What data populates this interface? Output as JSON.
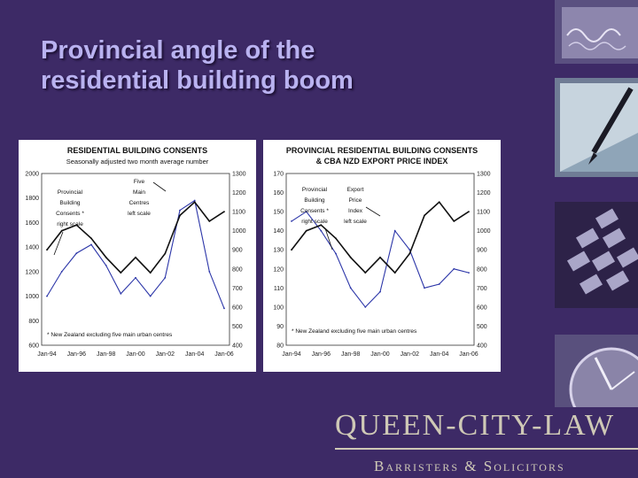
{
  "slide": {
    "title_line1": "Provincial angle of the",
    "title_line2": "residential building boom"
  },
  "brand": {
    "name": "QUEEN-CITY-LAW",
    "tagline": "Barristers & Solicitors"
  },
  "charts": [
    {
      "title": "RESIDENTIAL BUILDING CONSENTS",
      "subtitle": "Seasonally adjusted two month average number",
      "left_ticks": [
        "2000",
        "1800",
        "1600",
        "1400",
        "1200",
        "1000",
        "800",
        "600"
      ],
      "right_ticks": [
        "1300",
        "1200",
        "1100",
        "1000",
        "900",
        "800",
        "700",
        "600",
        "500",
        "400"
      ],
      "x_ticks": [
        "Jan-94",
        "Jan-96",
        "Jan-98",
        "Jan-00",
        "Jan-02",
        "Jan-04",
        "Jan-06"
      ],
      "annot_a": [
        "Provincial",
        "Building",
        "Consents *",
        "right scale"
      ],
      "annot_b": [
        "Five",
        "Main",
        "Centres",
        "left scale"
      ],
      "footnote": "* New Zealand excluding five main urban centres"
    },
    {
      "title": "PROVINCIAL RESIDENTIAL BUILDING CONSENTS",
      "subtitle": "& CBA NZD EXPORT PRICE INDEX",
      "left_ticks": [
        "170",
        "160",
        "150",
        "140",
        "130",
        "120",
        "110",
        "100",
        "90",
        "80"
      ],
      "right_ticks": [
        "1300",
        "1200",
        "1100",
        "1000",
        "900",
        "800",
        "700",
        "600",
        "500",
        "400"
      ],
      "x_ticks": [
        "Jan-94",
        "Jan-96",
        "Jan-98",
        "Jan-00",
        "Jan-02",
        "Jan-04",
        "Jan-06"
      ],
      "annot_a": [
        "Provincial",
        "Building",
        "Consents *",
        "right scale"
      ],
      "annot_b": [
        "Export",
        "Price",
        "Index",
        "left scale"
      ],
      "footnote": "* New Zealand excluding five main urban centres"
    }
  ],
  "chart_data": [
    {
      "type": "line",
      "title": "RESIDENTIAL BUILDING CONSENTS",
      "subtitle": "Seasonally adjusted two month average number",
      "x": [
        "Jan-94",
        "Jan-95",
        "Jan-96",
        "Jan-97",
        "Jan-98",
        "Jan-99",
        "Jan-00",
        "Jan-01",
        "Jan-02",
        "Jan-03",
        "Jan-04",
        "Jan-05",
        "Jan-06"
      ],
      "series": [
        {
          "name": "Five Main Centres",
          "axis": "left",
          "color": "#2b35a8",
          "values": [
            1000,
            1200,
            1350,
            1420,
            1250,
            1020,
            1150,
            1000,
            1150,
            1700,
            1780,
            1200,
            900
          ]
        },
        {
          "name": "Provincial Building Consents",
          "axis": "right",
          "color": "#111111",
          "values": [
            900,
            1000,
            1030,
            960,
            860,
            780,
            860,
            780,
            880,
            1080,
            1150,
            1050,
            1100
          ]
        }
      ],
      "ylim_left": [
        600,
        2000
      ],
      "ylim_right": [
        400,
        1300
      ],
      "grid": false
    },
    {
      "type": "line",
      "title": "PROVINCIAL RESIDENTIAL BUILDING CONSENTS",
      "subtitle": "& CBA NZD EXPORT PRICE INDEX",
      "x": [
        "Jan-94",
        "Jan-95",
        "Jan-96",
        "Jan-97",
        "Jan-98",
        "Jan-99",
        "Jan-00",
        "Jan-01",
        "Jan-02",
        "Jan-03",
        "Jan-04",
        "Jan-05",
        "Jan-06"
      ],
      "series": [
        {
          "name": "Export Price Index",
          "axis": "left",
          "color": "#2b35a8",
          "values": [
            145,
            150,
            140,
            128,
            110,
            100,
            108,
            140,
            130,
            110,
            112,
            120,
            118
          ]
        },
        {
          "name": "Provincial Building Consents",
          "axis": "right",
          "color": "#111111",
          "values": [
            900,
            1000,
            1030,
            960,
            860,
            780,
            860,
            780,
            880,
            1080,
            1150,
            1050,
            1100
          ]
        }
      ],
      "ylim_left": [
        80,
        170
      ],
      "ylim_right": [
        400,
        1300
      ],
      "grid": false
    }
  ]
}
